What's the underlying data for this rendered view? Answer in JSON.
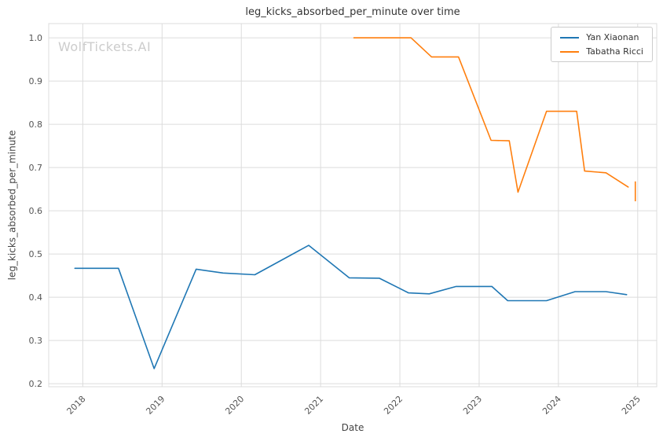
{
  "watermark": "WolfTickets.AI",
  "chart_data": {
    "type": "line",
    "title": "leg_kicks_absorbed_per_minute over time",
    "xlabel": "Date",
    "ylabel": "leg_kicks_absorbed_per_minute",
    "xlim": [
      2017.57,
      2025.24
    ],
    "ylim": [
      0.193,
      1.033
    ],
    "xticks": [
      2018,
      2019,
      2020,
      2021,
      2022,
      2023,
      2024,
      2025
    ],
    "yticks": [
      0.2,
      0.3,
      0.4,
      0.5,
      0.6,
      0.7,
      0.8,
      0.9,
      1.0
    ],
    "grid": true,
    "grid_color": "#dcdcdc",
    "background": "#ffffff",
    "legend_position": "upper right",
    "series": [
      {
        "name": "Yan Xiaonan",
        "color": "#1f77b4",
        "x": [
          2017.9,
          2018.45,
          2018.9,
          2019.43,
          2019.77,
          2020.17,
          2020.85,
          2021.36,
          2021.74,
          2022.11,
          2022.37,
          2022.71,
          2023.16,
          2023.36,
          2023.85,
          2024.21,
          2024.6,
          2024.86
        ],
        "y": [
          0.467,
          0.467,
          0.235,
          0.465,
          0.456,
          0.452,
          0.52,
          0.445,
          0.444,
          0.41,
          0.408,
          0.425,
          0.425,
          0.392,
          0.392,
          0.413,
          0.413,
          0.406
        ]
      },
      {
        "name": "Tabatha Ricci",
        "color": "#ff7f0e",
        "x": [
          2021.42,
          2022.14,
          2022.4,
          2022.74,
          2023.15,
          2023.38,
          2023.49,
          2023.85,
          2024.23,
          2024.33,
          2024.6,
          2024.88
        ],
        "y": [
          1.0,
          1.0,
          0.956,
          0.956,
          0.763,
          0.762,
          0.643,
          0.83,
          0.83,
          0.692,
          0.688,
          0.655
        ]
      }
    ],
    "end_tick": {
      "x": 2024.97,
      "y_from": 0.622,
      "y_to": 0.668,
      "color": "#ff7f0e"
    }
  }
}
